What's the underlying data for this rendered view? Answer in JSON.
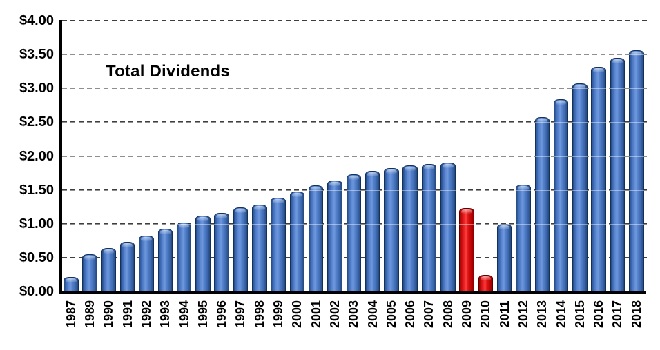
{
  "chart_data": {
    "type": "bar",
    "title": "Total Dividends",
    "xlabel": "",
    "ylabel": "",
    "categories": [
      "1987",
      "1989",
      "1990",
      "1991",
      "1992",
      "1993",
      "1994",
      "1995",
      "1996",
      "1997",
      "1998",
      "1999",
      "2000",
      "2001",
      "2002",
      "2003",
      "2004",
      "2005",
      "2006",
      "2007",
      "2008",
      "2009",
      "2010",
      "2011",
      "2012",
      "2013",
      "2014",
      "2015",
      "2016",
      "2017",
      "2018"
    ],
    "values": [
      0.21,
      0.55,
      0.64,
      0.73,
      0.82,
      0.93,
      1.02,
      1.12,
      1.16,
      1.24,
      1.28,
      1.38,
      1.48,
      1.57,
      1.64,
      1.73,
      1.78,
      1.82,
      1.86,
      1.88,
      1.9,
      1.23,
      0.24,
      1.0,
      1.58,
      2.57,
      2.84,
      3.07,
      3.32,
      3.45,
      3.56
    ],
    "highlight_categories": [
      "2009",
      "2010"
    ],
    "ylim": [
      0,
      4
    ],
    "ytick_step": 0.5,
    "ytick_labels": [
      "$0.00",
      "$0.50",
      "$1.00",
      "$1.50",
      "$2.00",
      "$2.50",
      "$3.00",
      "$3.50",
      "$4.00"
    ],
    "x_tick_rotation": 90,
    "grid": "dashed-horizontal",
    "legend": "none",
    "colors": {
      "bar": "#4472C4",
      "bar_edge": "#17375E",
      "highlight_bar": "#E81515",
      "highlight_edge": "#7A0000",
      "gridline": "#3F3F3F",
      "axis": "#000000",
      "text": "#000000",
      "background": "#FFFFFF"
    }
  }
}
